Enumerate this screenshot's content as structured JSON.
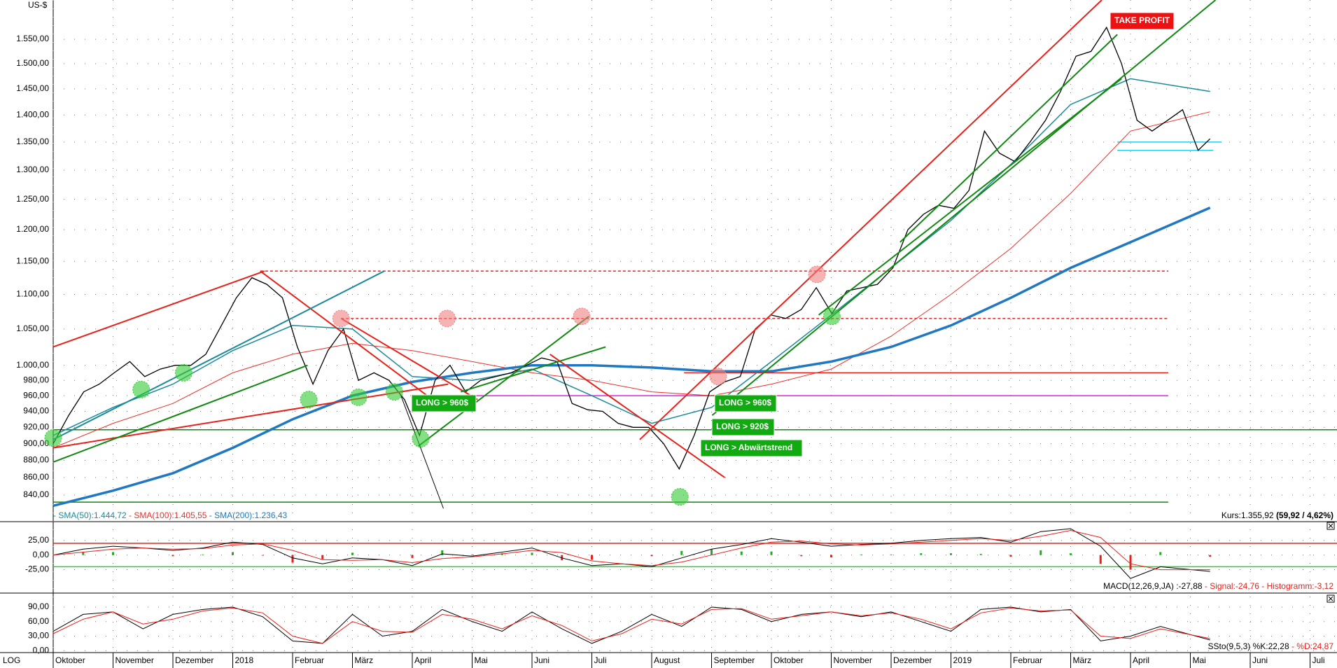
{
  "scale_label": "LOG",
  "chart_data": [
    {
      "type": "line",
      "axis_label": "US-$",
      "log": true,
      "grid": true,
      "xlim": [
        0,
        21.45
      ],
      "ylim": [
        822,
        1634
      ],
      "yticks": [
        {
          "value": 840,
          "label": "840,00"
        },
        {
          "value": 860,
          "label": "860,00"
        },
        {
          "value": 880,
          "label": "880,00"
        },
        {
          "value": 900,
          "label": "900,00"
        },
        {
          "value": 920,
          "label": "920,00"
        },
        {
          "value": 940,
          "label": "940,00"
        },
        {
          "value": 960,
          "label": "960,00"
        },
        {
          "value": 980,
          "label": "980,00"
        },
        {
          "value": 1000,
          "label": "1.000,00"
        },
        {
          "value": 1050,
          "label": "1.050,00"
        },
        {
          "value": 1100,
          "label": "1.100,00"
        },
        {
          "value": 1150,
          "label": "1.150,00"
        },
        {
          "value": 1200,
          "label": "1.200,00"
        },
        {
          "value": 1250,
          "label": "1.250,00"
        },
        {
          "value": 1300,
          "label": "1.300,00"
        },
        {
          "value": 1350,
          "label": "1.350,00"
        },
        {
          "value": 1400,
          "label": "1.400,00"
        },
        {
          "value": 1450,
          "label": "1.450,00"
        },
        {
          "value": 1500,
          "label": "1.500,00"
        },
        {
          "value": 1550,
          "label": "1.550,00"
        }
      ],
      "color": "#000000",
      "x": [
        0,
        0.26,
        0.51,
        0.77,
        1.02,
        1.28,
        1.53,
        1.79,
        2.04,
        2.3,
        2.55,
        2.81,
        3.06,
        3.32,
        3.57,
        3.83,
        4.08,
        4.34,
        4.59,
        4.85,
        5.1,
        5.36,
        5.61,
        5.87,
        6.12,
        6.38,
        6.63,
        6.89,
        7.14,
        7.4,
        7.65,
        7.91,
        8.16,
        8.42,
        8.67,
        8.93,
        9.18,
        9.44,
        9.69,
        9.95,
        10.2,
        10.46,
        10.71,
        10.97,
        11.22,
        11.48,
        11.73,
        11.99,
        12.24,
        12.5,
        12.75,
        13.01,
        13.26,
        13.52,
        13.77,
        14.03,
        14.28,
        14.54,
        14.79,
        15.05,
        15.3,
        15.56,
        15.81,
        16.07,
        16.32,
        16.58,
        16.83,
        17.09,
        17.34,
        17.6,
        17.85,
        18.11,
        18.36,
        18.62,
        18.87,
        19.13,
        19.33
      ],
      "values": [
        900,
        935,
        965,
        975,
        990,
        1005,
        985,
        995,
        1000,
        1000,
        1015,
        1055,
        1095,
        1125,
        1115,
        1095,
        1025,
        975,
        1020,
        1050,
        980,
        990,
        980,
        955,
        910,
        980,
        1000,
        965,
        980,
        985,
        990,
        1000,
        1010,
        1005,
        950,
        942,
        940,
        925,
        920,
        920,
        900,
        870,
        910,
        965,
        978,
        985,
        1050,
        1070,
        1065,
        1078,
        1110,
        1072,
        1105,
        1110,
        1115,
        1140,
        1200,
        1225,
        1240,
        1235,
        1265,
        1370,
        1330,
        1315,
        1350,
        1390,
        1445,
        1515,
        1525,
        1575,
        1500,
        1390,
        1370,
        1390,
        1410,
        1335,
        1356
      ],
      "series": [
        {
          "name": "- SMA(50):1.444,72",
          "color": "#1a8a9a",
          "width": 1.5,
          "x": [
            0,
            1,
            2,
            3,
            4,
            5,
            6,
            7,
            8,
            9,
            10,
            11,
            12,
            13,
            14,
            15,
            16,
            17,
            18,
            19.33
          ],
          "values": [
            910,
            945,
            975,
            1020,
            1055,
            1050,
            985,
            980,
            995,
            960,
            925,
            945,
            1005,
            1070,
            1140,
            1215,
            1310,
            1420,
            1470,
            1445
          ]
        },
        {
          "name": " - SMA(100):1.405,55",
          "color": "#e8312a",
          "width": 1,
          "x": [
            0,
            1,
            2,
            3,
            4,
            5,
            6,
            7,
            8,
            9,
            10,
            11,
            12,
            13,
            14,
            15,
            16,
            17,
            18,
            19.33
          ],
          "values": [
            895,
            925,
            950,
            990,
            1015,
            1030,
            1020,
            1005,
            990,
            980,
            965,
            960,
            975,
            995,
            1040,
            1100,
            1170,
            1260,
            1370,
            1406
          ]
        },
        {
          "name": " - SMA(200):1.236,43",
          "color": "#1f78c1",
          "width": 3.5,
          "x": [
            0,
            1,
            2,
            3,
            4,
            5,
            6,
            7,
            8,
            9,
            10,
            11,
            12,
            13,
            14,
            15,
            16,
            17,
            18,
            19.33
          ],
          "values": [
            828,
            845,
            865,
            895,
            930,
            960,
            978,
            990,
            1000,
            1000,
            997,
            992,
            992,
            1005,
            1025,
            1055,
            1095,
            1140,
            1180,
            1236
          ]
        }
      ],
      "levels": [
        {
          "value": 1135,
          "from": 3.46,
          "to": 18.63,
          "color": "#e8201a",
          "dash": true
        },
        {
          "value": 1065,
          "from": 4.81,
          "to": 18.63,
          "color": "#e8201a",
          "dash": true
        },
        {
          "value": 990,
          "from": 10.54,
          "to": 18.63,
          "color": "#e8201a",
          "dash": false
        },
        {
          "value": 960,
          "from": 7.03,
          "to": 18.63,
          "color": "#e020e0",
          "dash": false
        },
        {
          "value": 917,
          "from": 0,
          "to": 21.45,
          "color": "#118811",
          "dash": false
        },
        {
          "value": 832,
          "from": 0,
          "to": 18.63,
          "color": "#118811",
          "dash": false
        },
        {
          "value": 1350,
          "from": 17.78,
          "to": 19.52,
          "color": "#22d0e0",
          "dash": false
        },
        {
          "value": 1335,
          "from": 17.78,
          "to": 19.38,
          "color": "#22d0e0",
          "dash": false
        }
      ],
      "trendlines": [
        {
          "x": [
            0,
            3.53
          ],
          "y": [
            1025,
            1135
          ],
          "color": "#e8201a"
        },
        {
          "x": [
            0,
            6.6
          ],
          "y": [
            895,
            975
          ],
          "color": "#e8201a"
        },
        {
          "x": [
            3.46,
            6.6
          ],
          "y": [
            1135,
            940
          ],
          "color": "#e8201a"
        },
        {
          "x": [
            4.81,
            7.09
          ],
          "y": [
            1065,
            955
          ],
          "color": "#e8201a"
        },
        {
          "x": [
            8.3,
            11.22
          ],
          "y": [
            1015,
            860
          ],
          "color": "#e8201a"
        },
        {
          "x": [
            9.8,
            17.52
          ],
          "y": [
            905,
            1634
          ],
          "color": "#e8201a"
        },
        {
          "x": [
            0,
            4.25
          ],
          "y": [
            878,
            1000
          ],
          "color": "#118811"
        },
        {
          "x": [
            0,
            5.53
          ],
          "y": [
            905,
            1135
          ],
          "color": "#1a8a9a"
        },
        {
          "x": [
            6.1,
            8.95
          ],
          "y": [
            897,
            1068
          ],
          "color": "#118811"
        },
        {
          "x": [
            6.81,
            9.23
          ],
          "y": [
            965,
            1025
          ],
          "color": "#118811"
        },
        {
          "x": [
            11.01,
            19.42
          ],
          "y": [
            935,
            1634
          ],
          "color": "#118811"
        },
        {
          "x": [
            14.15,
            17.78
          ],
          "y": [
            1180,
            1560
          ],
          "color": "#118811"
        },
        {
          "x": [
            12.79,
            17.85
          ],
          "y": [
            1070,
            1470
          ],
          "color": "#118811"
        },
        {
          "x": [
            5.81,
            6.52
          ],
          "y": [
            960,
            825
          ],
          "color": "#000000"
        }
      ],
      "signals": [
        {
          "x": 0,
          "y": 907,
          "color": "#33cc33"
        },
        {
          "x": 1.47,
          "y": 968,
          "color": "#33cc33"
        },
        {
          "x": 2.18,
          "y": 990,
          "color": "#33cc33"
        },
        {
          "x": 4.27,
          "y": 955,
          "color": "#33cc33"
        },
        {
          "x": 5.1,
          "y": 958,
          "color": "#33cc33"
        },
        {
          "x": 5.7,
          "y": 965,
          "color": "#33cc33"
        },
        {
          "x": 6.14,
          "y": 906,
          "color": "#33cc33"
        },
        {
          "x": 10.47,
          "y": 838,
          "color": "#33cc33"
        },
        {
          "x": 13.01,
          "y": 1068,
          "color": "#33cc33"
        },
        {
          "x": 4.81,
          "y": 1065,
          "color": "#f08080"
        },
        {
          "x": 6.58,
          "y": 1065,
          "color": "#f08080"
        },
        {
          "x": 8.83,
          "y": 1068,
          "color": "#f08080"
        },
        {
          "x": 11.11,
          "y": 985,
          "color": "#f08080"
        },
        {
          "x": 12.76,
          "y": 1130,
          "color": "#f08080"
        }
      ],
      "annotations": [
        {
          "text": "LONG > 960$",
          "color": "#11aa11"
        },
        {
          "text": "LONG > 960$",
          "color": "#11aa11"
        },
        {
          "text": "LONG > 920$",
          "color": "#11aa11"
        },
        {
          "text": "LONG > Abwärtstrend",
          "color": "#11aa11"
        },
        {
          "text": "TAKE PROFIT",
          "color": "#ee1111"
        }
      ],
      "quote": [
        "Kurs:1.355,92 ",
        "(59,92 / 4,62%)"
      ]
    },
    {
      "type": "line",
      "grid": true,
      "xlim": [
        0,
        21.45
      ],
      "ylim": [
        -65,
        57
      ],
      "yticks": [
        {
          "value": 25,
          "label": "25,00"
        },
        {
          "value": 0,
          "label": "0,00"
        },
        {
          "value": -25,
          "label": "-25,00"
        }
      ],
      "x": [
        0,
        0.5,
        1,
        1.5,
        2,
        2.5,
        3,
        3.5,
        4,
        4.5,
        5,
        5.5,
        6,
        6.5,
        7,
        7.5,
        8,
        8.5,
        9,
        9.5,
        10,
        10.5,
        11,
        11.5,
        12,
        12.5,
        13,
        13.5,
        14,
        14.5,
        15,
        15.5,
        16,
        16.5,
        17,
        17.5,
        18,
        18.5,
        19.33
      ],
      "series": [
        {
          "name": "MACD(12,26,9,JA) :-27,88",
          "color": "#000000",
          "width": 1,
          "values": [
            0,
            10,
            15,
            12,
            8,
            12,
            22,
            18,
            -5,
            -15,
            -5,
            -8,
            -18,
            2,
            -2,
            5,
            12,
            -5,
            -18,
            -15,
            -20,
            -5,
            10,
            18,
            28,
            22,
            15,
            18,
            20,
            25,
            28,
            30,
            22,
            40,
            45,
            15,
            -40,
            -20,
            -28
          ]
        },
        {
          "name": " - Signal:-24,76",
          "color": "#e8201a",
          "width": 1,
          "values": [
            0,
            5,
            10,
            12,
            10,
            11,
            17,
            19,
            8,
            -8,
            -9,
            -8,
            -13,
            -6,
            -3,
            2,
            8,
            4,
            -10,
            -15,
            -18,
            -12,
            0,
            12,
            22,
            24,
            19,
            17,
            19,
            22,
            25,
            28,
            25,
            32,
            42,
            30,
            -15,
            -25,
            -25
          ]
        }
      ],
      "histogram": {
        "name": " - Histogramm:-3,12",
        "pos_color": "#22aa22",
        "neg_color": "#e8201a",
        "values": [
          0,
          5,
          5,
          0,
          -2,
          1,
          5,
          -1,
          -13,
          -7,
          4,
          0,
          -5,
          8,
          1,
          3,
          4,
          -9,
          -8,
          0,
          -2,
          7,
          10,
          6,
          6,
          -2,
          -4,
          1,
          1,
          3,
          3,
          2,
          -3,
          8,
          3,
          -15,
          -25,
          5,
          -3
        ]
      },
      "levels": [
        {
          "value": 20,
          "from": 0,
          "to": 21.45,
          "color": "#e8201a",
          "dash": false
        },
        {
          "value": -20,
          "from": 0,
          "to": 21.45,
          "color": "#33cc33",
          "dash": false
        }
      ]
    },
    {
      "type": "line",
      "grid": true,
      "xlim": [
        0,
        21.45
      ],
      "ylim": [
        -4,
        116
      ],
      "yticks": [
        {
          "value": 90,
          "label": "90,00"
        },
        {
          "value": 60,
          "label": "60,00"
        },
        {
          "value": 30,
          "label": "30,00"
        },
        {
          "value": 0,
          "label": "0,00"
        }
      ],
      "xticks": [
        {
          "value": 0,
          "label": "Oktober"
        },
        {
          "value": 1,
          "label": "November"
        },
        {
          "value": 2,
          "label": "Dezember"
        },
        {
          "value": 3,
          "label": "2018"
        },
        {
          "value": 4,
          "label": "Februar"
        },
        {
          "value": 5,
          "label": "März"
        },
        {
          "value": 6,
          "label": "April"
        },
        {
          "value": 7,
          "label": "Mai"
        },
        {
          "value": 8,
          "label": "Juni"
        },
        {
          "value": 9,
          "label": "Juli"
        },
        {
          "value": 10,
          "label": "August"
        },
        {
          "value": 11,
          "label": "September"
        },
        {
          "value": 12,
          "label": "Oktober"
        },
        {
          "value": 13,
          "label": "November"
        },
        {
          "value": 14,
          "label": "Dezember"
        },
        {
          "value": 15,
          "label": "2019"
        },
        {
          "value": 16,
          "label": "Februar"
        },
        {
          "value": 17,
          "label": "März"
        },
        {
          "value": 18,
          "label": "April"
        },
        {
          "value": 19,
          "label": "Mai"
        },
        {
          "value": 20,
          "label": "Juni"
        },
        {
          "value": 21,
          "label": "Juli"
        }
      ],
      "x": [
        0,
        0.5,
        1,
        1.5,
        2,
        2.5,
        3,
        3.5,
        4,
        4.5,
        5,
        5.5,
        6,
        6.5,
        7,
        7.5,
        8,
        8.5,
        9,
        9.5,
        10,
        10.5,
        11,
        11.5,
        12,
        12.5,
        13,
        13.5,
        14,
        14.5,
        15,
        15.5,
        16,
        16.5,
        17,
        17.5,
        18,
        18.5,
        19.33
      ],
      "series": [
        {
          "name": "SSto(9,5,3) %K:22,28",
          "color": "#000000",
          "width": 1,
          "values": [
            40,
            75,
            80,
            45,
            75,
            85,
            90,
            70,
            20,
            15,
            75,
            30,
            40,
            85,
            60,
            40,
            80,
            45,
            15,
            40,
            75,
            50,
            90,
            85,
            60,
            75,
            80,
            70,
            80,
            60,
            40,
            85,
            90,
            80,
            85,
            20,
            30,
            50,
            22
          ]
        },
        {
          "name": " - %D:24,87",
          "color": "#e8201a",
          "width": 1,
          "values": [
            35,
            65,
            80,
            55,
            65,
            82,
            88,
            78,
            30,
            15,
            60,
            40,
            38,
            75,
            65,
            45,
            72,
            52,
            20,
            35,
            65,
            55,
            85,
            87,
            65,
            72,
            80,
            72,
            78,
            65,
            45,
            78,
            88,
            82,
            84,
            30,
            25,
            45,
            25
          ]
        }
      ]
    }
  ]
}
